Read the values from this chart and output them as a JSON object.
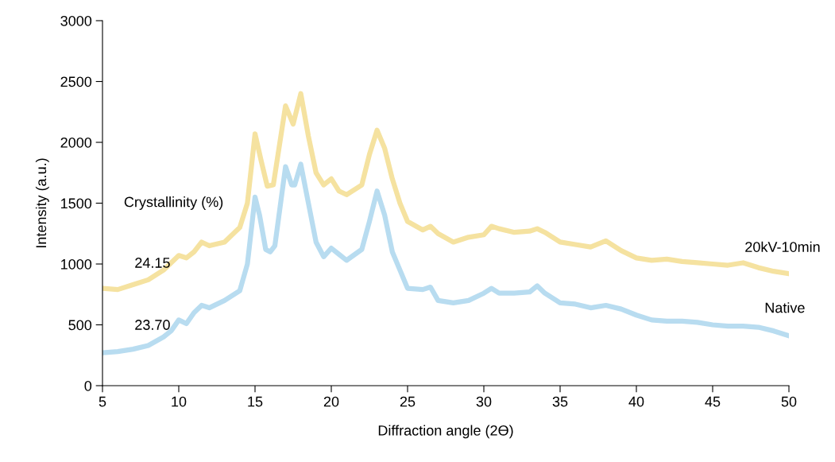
{
  "chart_data": {
    "type": "line",
    "xlabel": "Diffraction angle (2ϴ)",
    "ylabel": "Intensity (a.u.)",
    "xlim": [
      5,
      50
    ],
    "xticks": [
      5,
      10,
      15,
      20,
      25,
      30,
      35,
      40,
      45,
      50
    ],
    "ylim": [
      0,
      3000
    ],
    "yticks": [
      0,
      500,
      1000,
      1500,
      2000,
      2500,
      3000
    ],
    "grid": false,
    "legend": false,
    "marker": "none",
    "line_style": "solid",
    "series": [
      {
        "name": "20kV-10min",
        "color": "#f5e2a0",
        "x": [
          5,
          6,
          7,
          8,
          9,
          10,
          10.5,
          11,
          11.5,
          12,
          13,
          14,
          14.5,
          15,
          15.4,
          15.8,
          16.2,
          17,
          17.5,
          18,
          18.5,
          19,
          19.5,
          20,
          20.5,
          21,
          22,
          22.5,
          23,
          23.5,
          24,
          24.5,
          25,
          26,
          26.5,
          27,
          28,
          29,
          30,
          30.5,
          31,
          32,
          33,
          33.5,
          34,
          35,
          36,
          37,
          38,
          39,
          40,
          41,
          42,
          43,
          44,
          45,
          46,
          47,
          48,
          49,
          50
        ],
        "values": [
          800,
          790,
          830,
          870,
          950,
          1070,
          1050,
          1100,
          1180,
          1150,
          1180,
          1300,
          1500,
          2070,
          1850,
          1640,
          1650,
          2300,
          2150,
          2400,
          2050,
          1750,
          1650,
          1700,
          1600,
          1570,
          1650,
          1900,
          2100,
          1950,
          1700,
          1500,
          1350,
          1280,
          1310,
          1250,
          1180,
          1220,
          1240,
          1310,
          1290,
          1260,
          1270,
          1290,
          1260,
          1180,
          1160,
          1140,
          1190,
          1110,
          1050,
          1030,
          1040,
          1020,
          1010,
          1000,
          990,
          1010,
          970,
          940,
          920
        ]
      },
      {
        "name": "Native",
        "color": "#b8dcf0",
        "x": [
          5,
          6,
          7,
          8,
          9,
          9.5,
          10,
          10.5,
          11,
          11.5,
          12,
          13,
          14,
          14.5,
          15,
          15.3,
          15.7,
          16,
          16.3,
          17,
          17.4,
          17.6,
          18,
          18.5,
          19,
          19.5,
          20,
          20.5,
          21,
          22,
          22.5,
          23,
          23.5,
          24,
          24.5,
          25,
          26,
          26.5,
          27,
          28,
          29,
          30,
          30.5,
          31,
          32,
          33,
          33.5,
          34,
          35,
          36,
          37,
          38,
          39,
          40,
          41,
          42,
          43,
          44,
          45,
          46,
          47,
          48,
          49,
          50
        ],
        "values": [
          270,
          280,
          300,
          330,
          400,
          450,
          540,
          510,
          600,
          660,
          640,
          700,
          780,
          1000,
          1550,
          1400,
          1120,
          1100,
          1150,
          1800,
          1650,
          1650,
          1820,
          1500,
          1180,
          1060,
          1130,
          1080,
          1030,
          1120,
          1350,
          1600,
          1400,
          1100,
          950,
          800,
          790,
          810,
          700,
          680,
          700,
          760,
          800,
          760,
          760,
          770,
          820,
          760,
          680,
          670,
          640,
          660,
          630,
          580,
          540,
          530,
          530,
          520,
          500,
          490,
          490,
          480,
          450,
          410
        ]
      }
    ],
    "annotations": [
      "Crystallinity (%)",
      "24.15",
      "23.70"
    ]
  }
}
